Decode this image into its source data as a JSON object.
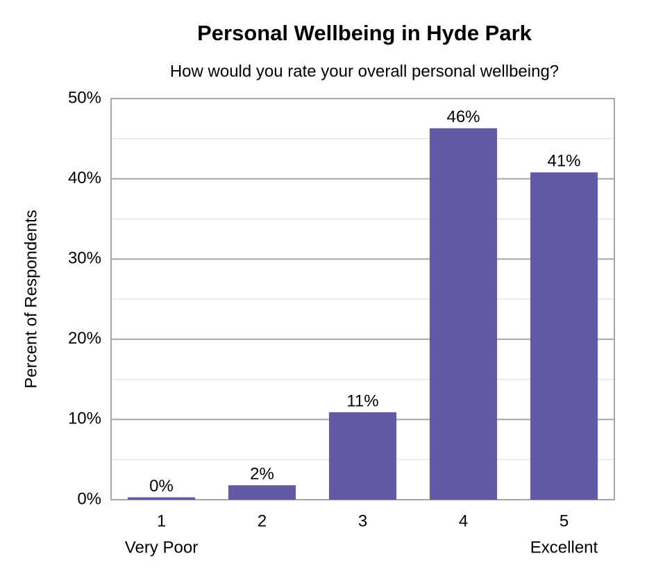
{
  "chart_data": {
    "type": "bar",
    "title": "Personal Wellbeing in Hyde Park",
    "subtitle": "How would you rate your overall personal wellbeing?",
    "y_label": "Percent of Respondents",
    "categories": [
      "1",
      "2",
      "3",
      "4",
      "5"
    ],
    "category_sublabels": [
      "Very Poor",
      null,
      null,
      null,
      "Excellent"
    ],
    "values": [
      0.3,
      1.8,
      10.9,
      46.3,
      40.8
    ],
    "value_labels": [
      "0%",
      "2%",
      "11%",
      "46%",
      "41%"
    ],
    "color": "#635aa5",
    "ylim": [
      0,
      50
    ],
    "yticks": [
      {
        "value": 0,
        "label": "0%"
      },
      {
        "value": 10,
        "label": "10%"
      },
      {
        "value": 20,
        "label": "20%"
      },
      {
        "value": 30,
        "label": "30%"
      },
      {
        "value": 40,
        "label": "40%"
      },
      {
        "value": 50,
        "label": "50%"
      }
    ],
    "minor_yticks": [
      5,
      15,
      25,
      35,
      45
    ],
    "grid": true
  }
}
